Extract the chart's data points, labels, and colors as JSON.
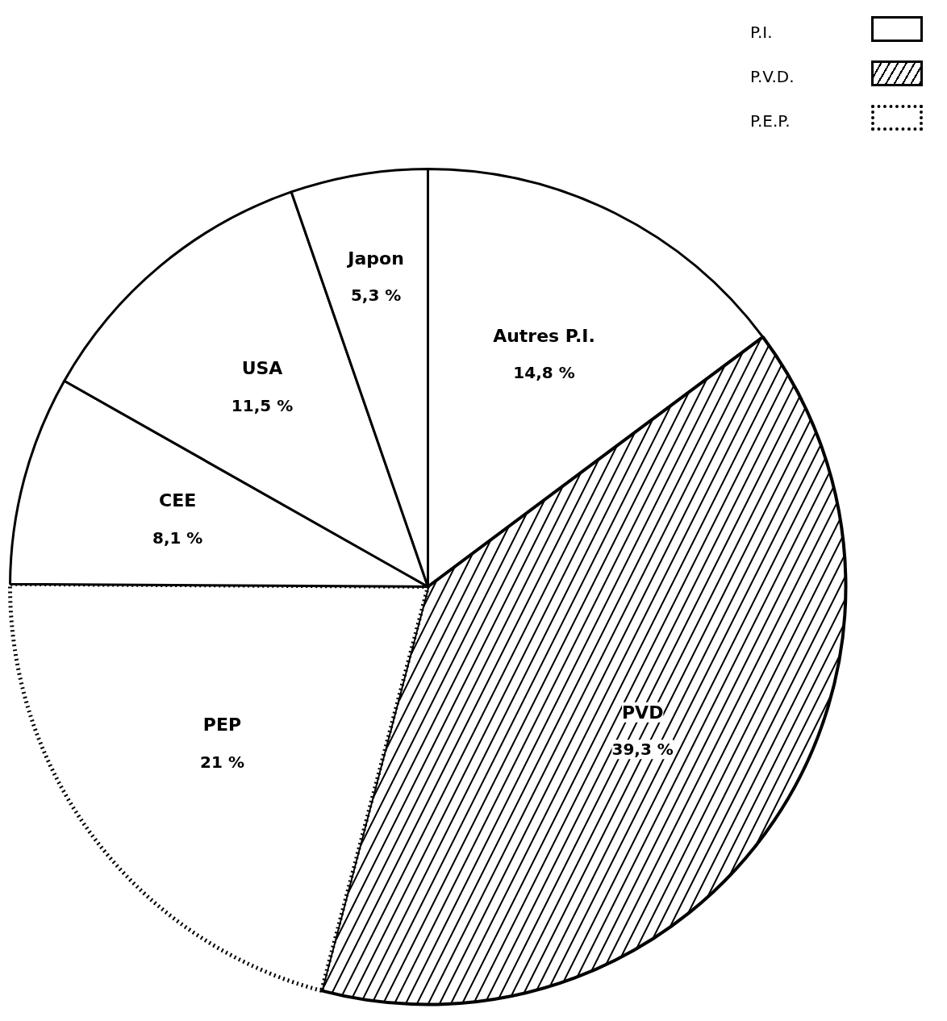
{
  "chart_data": {
    "type": "pie",
    "categories": [
      "Autres P.I.",
      "PVD",
      "PEP",
      "CEE",
      "USA",
      "Japon"
    ],
    "values": [
      14.8,
      39.3,
      21,
      8.1,
      11.5,
      5.3
    ],
    "colors": [
      "#ffffff",
      "#ffffff",
      "#ffffff",
      "#ffffff",
      "#ffffff",
      "#ffffff"
    ],
    "value_labels": [
      "14,8 %",
      "39,3 %",
      "21 %",
      "8,1 %",
      "11,5 %",
      "5,3 %"
    ],
    "annotations": [
      "P.I.",
      "P.V.D.",
      "P.E.P."
    ]
  }
}
